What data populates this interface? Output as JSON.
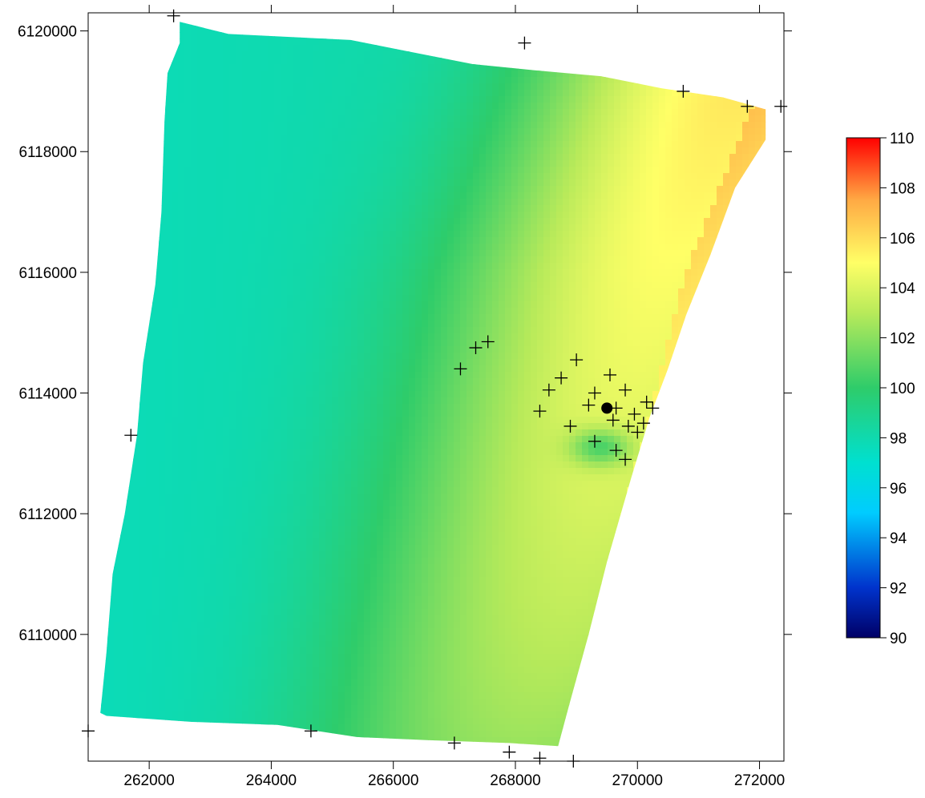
{
  "chart_data": {
    "type": "heatmap",
    "title": "",
    "xlabel": "",
    "ylabel": "",
    "xlim": [
      261000,
      272400
    ],
    "ylim": [
      6107900,
      6120300
    ],
    "x_ticks": [
      262000,
      264000,
      266000,
      268000,
      270000,
      272000
    ],
    "y_ticks": [
      6110000,
      6112000,
      6114000,
      6116000,
      6118000,
      6120000
    ],
    "x_tick_labels": [
      "262000",
      "264000",
      "266000",
      "268000",
      "270000",
      "272000"
    ],
    "y_tick_labels": [
      "6110000",
      "6112000",
      "6114000",
      "6116000",
      "6118000",
      "6120000"
    ],
    "colorbar": {
      "min": 90,
      "max": 110,
      "ticks": [
        90,
        92,
        94,
        96,
        98,
        100,
        102,
        104,
        106,
        108,
        110
      ],
      "tick_labels": [
        "90",
        "92",
        "94",
        "96",
        "98",
        "100",
        "102",
        "104",
        "106",
        "108",
        "110"
      ],
      "colormap": [
        "#000066",
        "#0033cc",
        "#00ccff",
        "#00e0d0",
        "#2ecc6a",
        "#b8ea5a",
        "#ffff66",
        "#ffaa44",
        "#ff0000"
      ]
    },
    "domain_polygon": [
      [
        262500,
        6120150
      ],
      [
        263300,
        6119950
      ],
      [
        264300,
        6119900
      ],
      [
        265300,
        6119850
      ],
      [
        266300,
        6119650
      ],
      [
        267300,
        6119450
      ],
      [
        268300,
        6119350
      ],
      [
        269400,
        6119250
      ],
      [
        270400,
        6119050
      ],
      [
        271400,
        6118900
      ],
      [
        272100,
        6118700
      ],
      [
        272100,
        6118200
      ],
      [
        271600,
        6117400
      ],
      [
        271200,
        6116300
      ],
      [
        270800,
        6115300
      ],
      [
        270500,
        6114400
      ],
      [
        270200,
        6113600
      ],
      [
        269900,
        6112600
      ],
      [
        269500,
        6111200
      ],
      [
        269200,
        6110000
      ],
      [
        268900,
        6108900
      ],
      [
        268700,
        6108150
      ],
      [
        267900,
        6108200
      ],
      [
        266500,
        6108250
      ],
      [
        265400,
        6108300
      ],
      [
        264100,
        6108500
      ],
      [
        262700,
        6108550
      ],
      [
        261300,
        6108650
      ],
      [
        261200,
        6108700
      ],
      [
        261300,
        6109700
      ],
      [
        261400,
        6111000
      ],
      [
        261600,
        6112000
      ],
      [
        261800,
        6113300
      ],
      [
        261900,
        6114500
      ],
      [
        262100,
        6115800
      ],
      [
        262200,
        6117000
      ],
      [
        262250,
        6118500
      ],
      [
        262300,
        6119300
      ],
      [
        262500,
        6119800
      ]
    ],
    "value_model": {
      "base_west": 98,
      "ridge_line": [
        [
          268800,
          6108200
        ],
        [
          270800,
          6116000
        ],
        [
          271900,
          6118800
        ]
      ],
      "ridge_peak": 106.5,
      "ridge_width": 2200,
      "green_band_center_offset": -2600,
      "local_low": {
        "x": 269400,
        "y": 6113100,
        "value": 99
      }
    },
    "points": [
      {
        "x": 262400,
        "y": 6120250
      },
      {
        "x": 268150,
        "y": 6119800
      },
      {
        "x": 270750,
        "y": 6119000
      },
      {
        "x": 271800,
        "y": 6118750
      },
      {
        "x": 272350,
        "y": 6118750
      },
      {
        "x": 261700,
        "y": 6113300
      },
      {
        "x": 261000,
        "y": 6108400
      },
      {
        "x": 264650,
        "y": 6108400
      },
      {
        "x": 267000,
        "y": 6108200
      },
      {
        "x": 267900,
        "y": 6108050
      },
      {
        "x": 268400,
        "y": 6107950
      },
      {
        "x": 268950,
        "y": 6107900
      },
      {
        "x": 267100,
        "y": 6114400
      },
      {
        "x": 267350,
        "y": 6114750
      },
      {
        "x": 267550,
        "y": 6114850
      },
      {
        "x": 269000,
        "y": 6114550
      },
      {
        "x": 268750,
        "y": 6114250
      },
      {
        "x": 268550,
        "y": 6114050
      },
      {
        "x": 268400,
        "y": 6113700
      },
      {
        "x": 268900,
        "y": 6113450
      },
      {
        "x": 269200,
        "y": 6113800
      },
      {
        "x": 269300,
        "y": 6114000
      },
      {
        "x": 269550,
        "y": 6114300
      },
      {
        "x": 269800,
        "y": 6114050
      },
      {
        "x": 269650,
        "y": 6113750
      },
      {
        "x": 269600,
        "y": 6113550
      },
      {
        "x": 269300,
        "y": 6113200
      },
      {
        "x": 269650,
        "y": 6113050
      },
      {
        "x": 269800,
        "y": 6112900
      },
      {
        "x": 269850,
        "y": 6113450
      },
      {
        "x": 269950,
        "y": 6113650
      },
      {
        "x": 270000,
        "y": 6113350
      },
      {
        "x": 270100,
        "y": 6113500
      },
      {
        "x": 270150,
        "y": 6113850
      },
      {
        "x": 270250,
        "y": 6113750
      }
    ],
    "highlight_point": {
      "x": 269500,
      "y": 6113750
    }
  }
}
